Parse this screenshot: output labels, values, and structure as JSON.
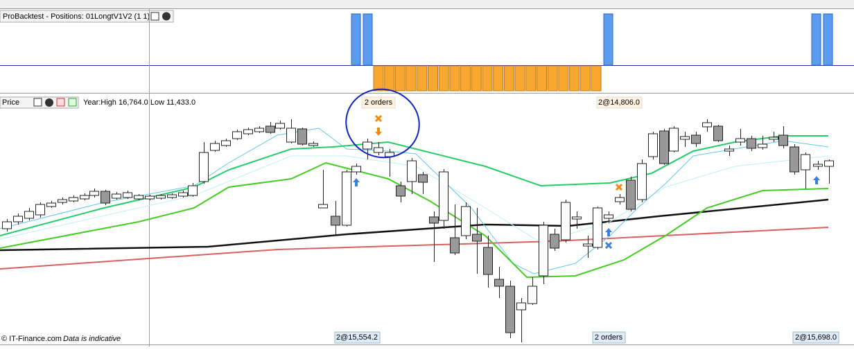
{
  "positions_panel": {
    "title": "ProBacktest - Positions: 01LongtV1V2 (1 1)"
  },
  "price_panel": {
    "title": "Price",
    "info": "Year:High 16,764.0 Low 11,433.0",
    "top_labels": [
      "2 orders",
      "2@14,806.0"
    ],
    "bottom_labels": [
      "2@15,554.2",
      "2 orders",
      "2@15,698.0"
    ]
  },
  "footer": {
    "source": "© IT-Finance.com",
    "note": "Data is indicative"
  }
}
